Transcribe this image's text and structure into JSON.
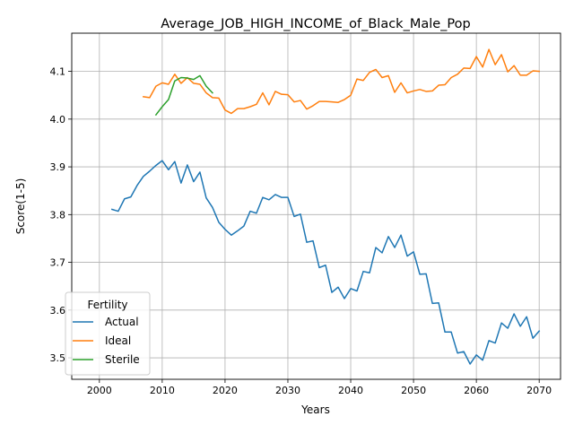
{
  "chart_data": {
    "type": "line",
    "title": "Average_JOB_HIGH_INCOME_of_Black_Male_Pop",
    "xlabel": "Years",
    "ylabel": "Score(1-5)",
    "xlim": [
      1995.6,
      2073.4
    ],
    "ylim": [
      3.455,
      4.18
    ],
    "xticks": [
      2000,
      2010,
      2020,
      2030,
      2040,
      2050,
      2060,
      2070
    ],
    "yticks": [
      3.5,
      3.6,
      3.7,
      3.8,
      3.9,
      4.0,
      4.1
    ],
    "grid": true,
    "legend": {
      "title": "Fertility",
      "placement": "lower-left"
    },
    "series": [
      {
        "name": "Actual",
        "color": "#1f77b4",
        "x": [
          2002,
          2003,
          2004,
          2005,
          2006,
          2007,
          2008,
          2009,
          2010,
          2011,
          2012,
          2013,
          2014,
          2015,
          2016,
          2017,
          2018,
          2019,
          2020,
          2021,
          2022,
          2023,
          2024,
          2025,
          2026,
          2027,
          2028,
          2029,
          2030,
          2031,
          2032,
          2033,
          2034,
          2035,
          2036,
          2037,
          2038,
          2039,
          2040,
          2041,
          2042,
          2043,
          2044,
          2045,
          2046,
          2047,
          2048,
          2049,
          2050,
          2051,
          2052,
          2053,
          2054,
          2055,
          2056,
          2057,
          2058,
          2059,
          2060,
          2061,
          2062,
          2063,
          2064,
          2065,
          2066,
          2067,
          2068,
          2069,
          2070
        ],
        "y": [
          3.811,
          3.807,
          3.833,
          3.837,
          3.861,
          3.88,
          3.891,
          3.903,
          3.913,
          3.894,
          3.911,
          3.866,
          3.904,
          3.869,
          3.889,
          3.835,
          3.815,
          3.784,
          3.769,
          3.757,
          3.766,
          3.776,
          3.807,
          3.803,
          3.836,
          3.831,
          3.842,
          3.836,
          3.836,
          3.796,
          3.801,
          3.742,
          3.745,
          3.689,
          3.694,
          3.637,
          3.648,
          3.624,
          3.645,
          3.64,
          3.681,
          3.678,
          3.731,
          3.72,
          3.754,
          3.731,
          3.757,
          3.713,
          3.722,
          3.675,
          3.676,
          3.614,
          3.615,
          3.554,
          3.554,
          3.51,
          3.513,
          3.487,
          3.506,
          3.495,
          3.536,
          3.531,
          3.573,
          3.562,
          3.592,
          3.566,
          3.586,
          3.541,
          3.556
        ]
      },
      {
        "name": "Ideal",
        "color": "#ff7f0e",
        "x": [
          2007,
          2008,
          2009,
          2010,
          2011,
          2012,
          2013,
          2014,
          2015,
          2016,
          2017,
          2018,
          2019,
          2020,
          2021,
          2022,
          2023,
          2024,
          2025,
          2026,
          2027,
          2028,
          2029,
          2030,
          2031,
          2032,
          2033,
          2034,
          2035,
          2036,
          2037,
          2038,
          2039,
          2040,
          2041,
          2042,
          2043,
          2044,
          2045,
          2046,
          2047,
          2048,
          2049,
          2050,
          2051,
          2052,
          2053,
          2054,
          2055,
          2056,
          2057,
          2058,
          2059,
          2060,
          2061,
          2062,
          2063,
          2064,
          2065,
          2066,
          2067,
          2068,
          2069,
          2070
        ],
        "y": [
          4.047,
          4.045,
          4.069,
          4.076,
          4.073,
          4.094,
          4.075,
          4.087,
          4.075,
          4.073,
          4.055,
          4.045,
          4.044,
          4.019,
          4.012,
          4.022,
          4.022,
          4.026,
          4.031,
          4.055,
          4.03,
          4.058,
          4.052,
          4.051,
          4.036,
          4.039,
          4.021,
          4.028,
          4.037,
          4.037,
          4.036,
          4.035,
          4.041,
          4.05,
          4.084,
          4.081,
          4.098,
          4.104,
          4.087,
          4.091,
          4.056,
          4.076,
          4.055,
          4.059,
          4.062,
          4.058,
          4.059,
          4.071,
          4.072,
          4.087,
          4.094,
          4.107,
          4.106,
          4.131,
          4.109,
          4.146,
          4.114,
          4.135,
          4.099,
          4.112,
          4.092,
          4.092,
          4.101,
          4.1
        ]
      },
      {
        "name": "Sterile",
        "color": "#2ca02c",
        "x": [
          2009,
          2010,
          2011,
          2012,
          2013,
          2014,
          2015,
          2016,
          2017,
          2018
        ],
        "y": [
          4.009,
          4.026,
          4.041,
          4.08,
          4.087,
          4.086,
          4.083,
          4.091,
          4.069,
          4.055
        ]
      }
    ]
  }
}
